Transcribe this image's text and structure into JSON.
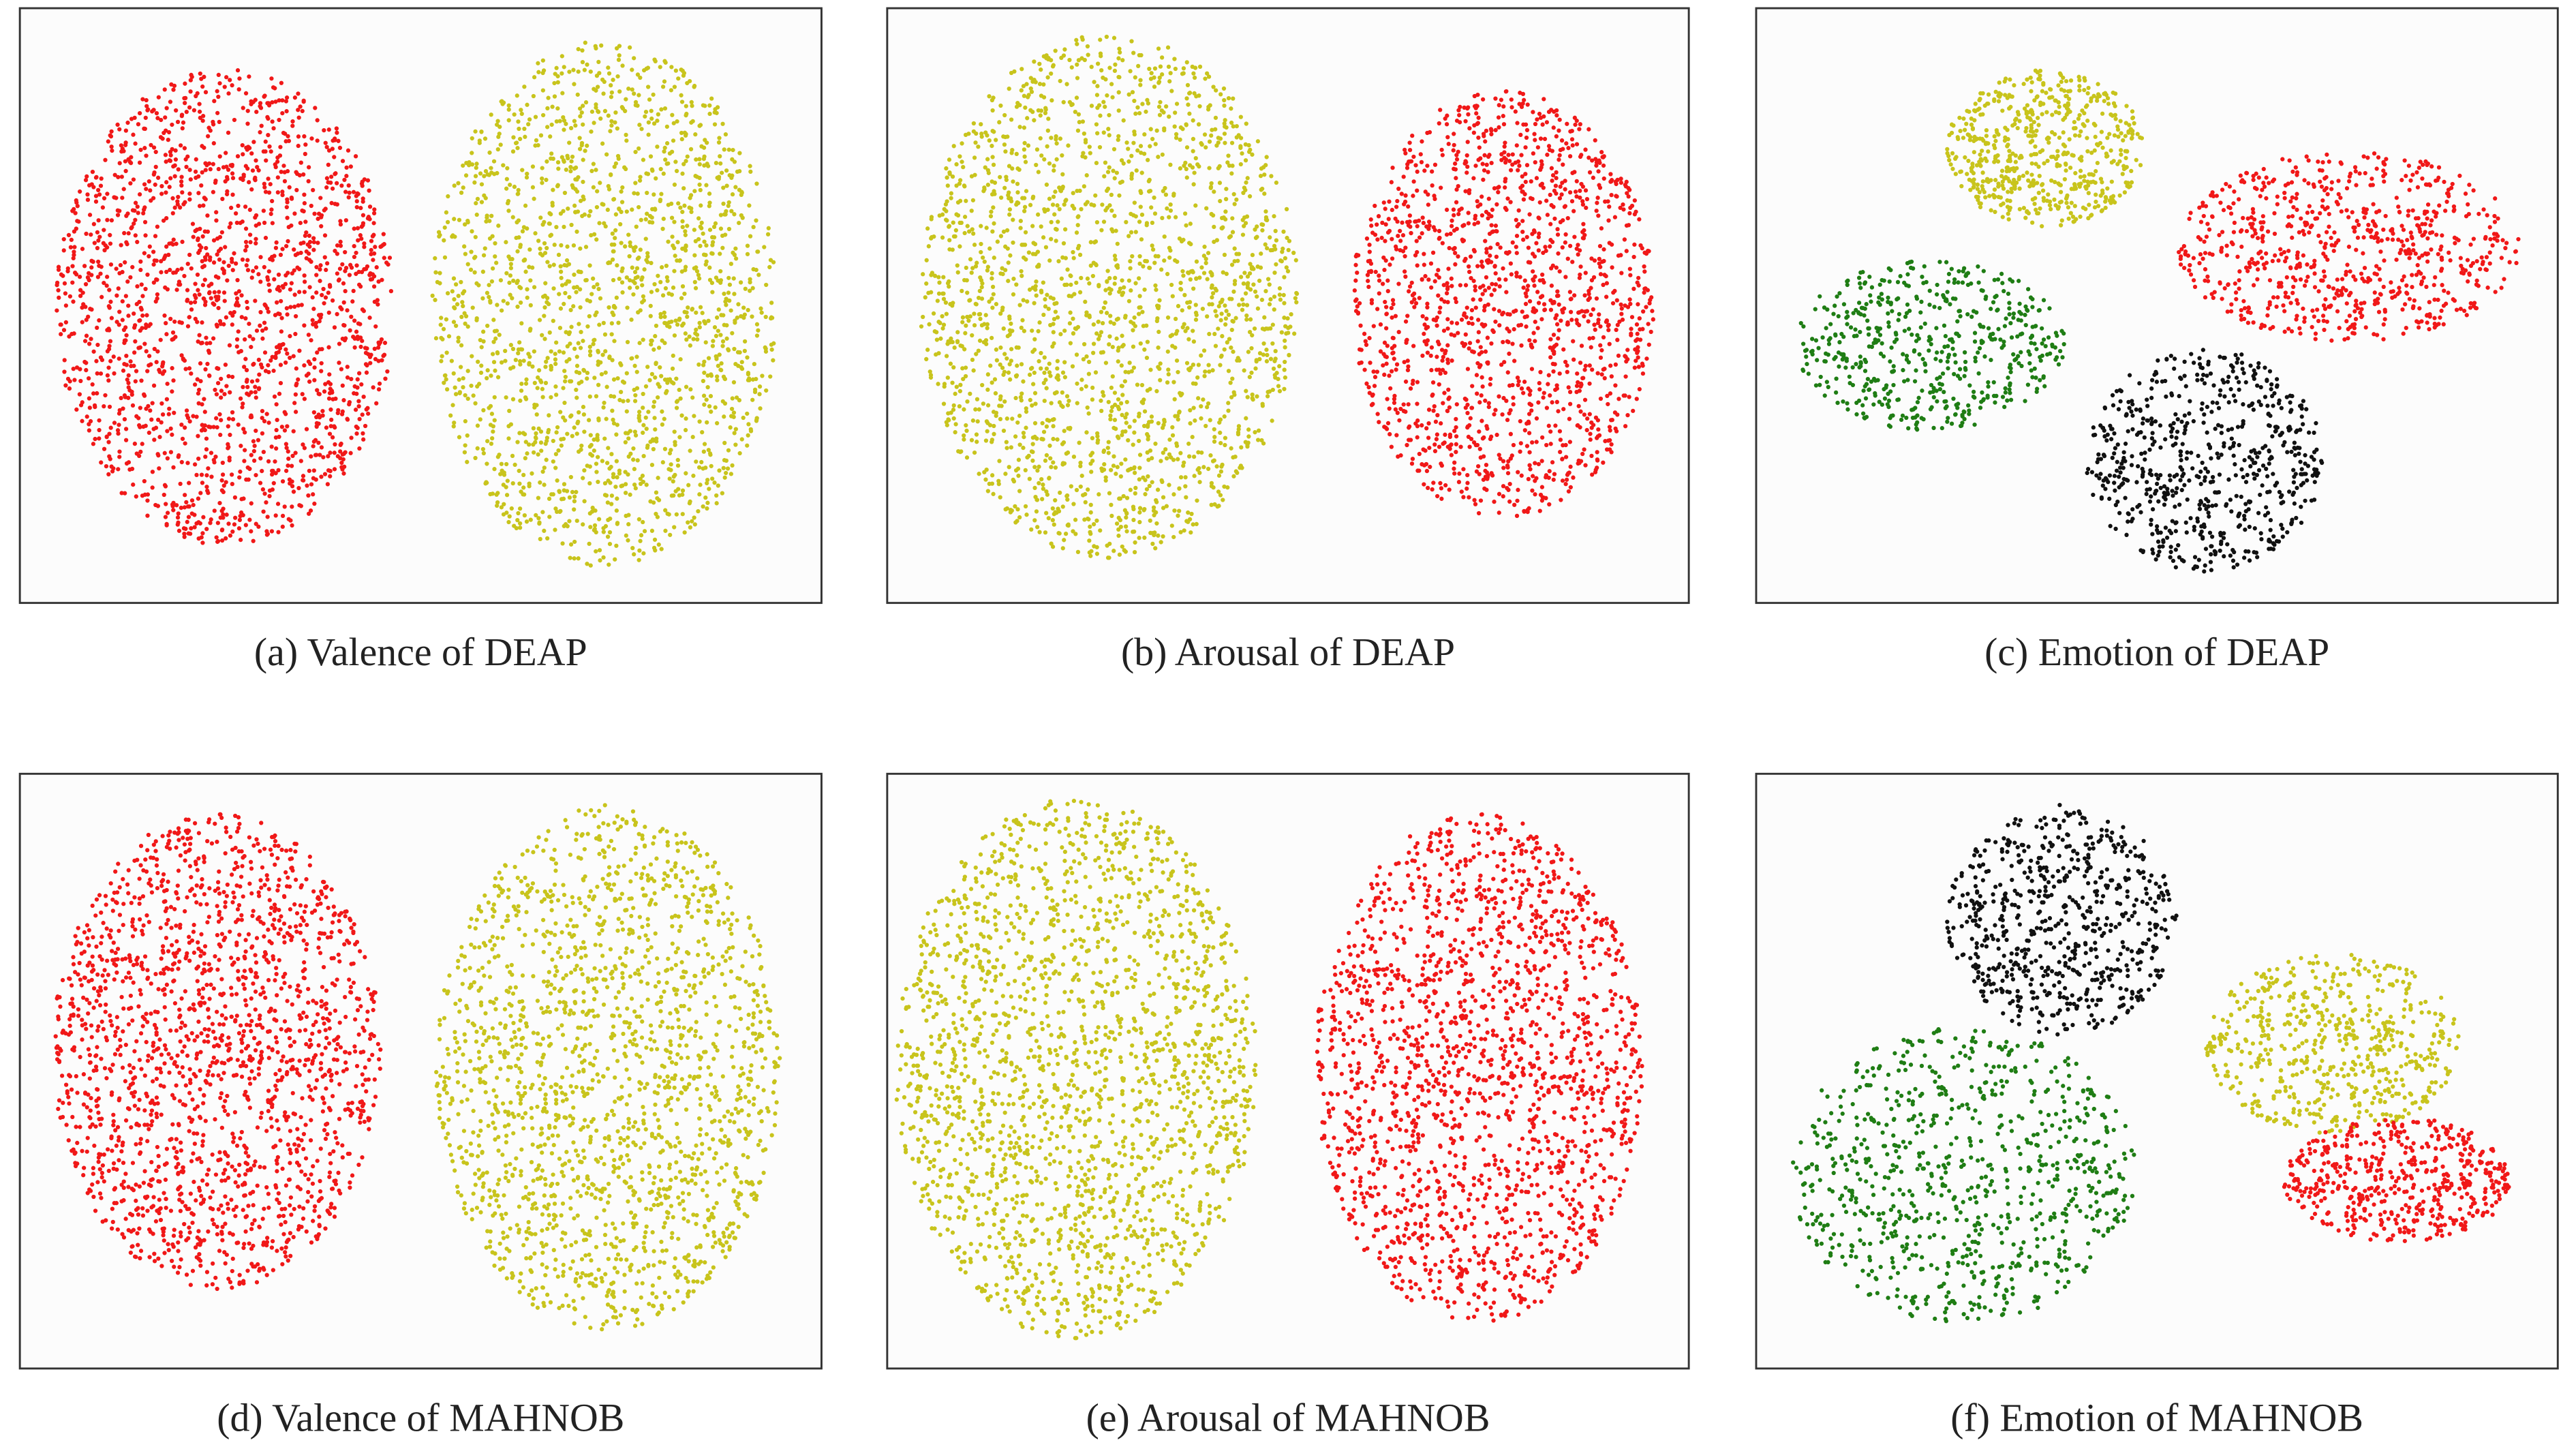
{
  "figure": {
    "panels": [
      {
        "caption": "(a) Valence of DEAP"
      },
      {
        "caption": "(b) Arousal of DEAP"
      },
      {
        "caption": "(c) Emotion of DEAP"
      },
      {
        "caption": "(d) Valence of MAHNOB"
      },
      {
        "caption": "(e) Arousal of MAHNOB"
      },
      {
        "caption": "(f) Emotion of MAHNOB"
      }
    ]
  }
}
